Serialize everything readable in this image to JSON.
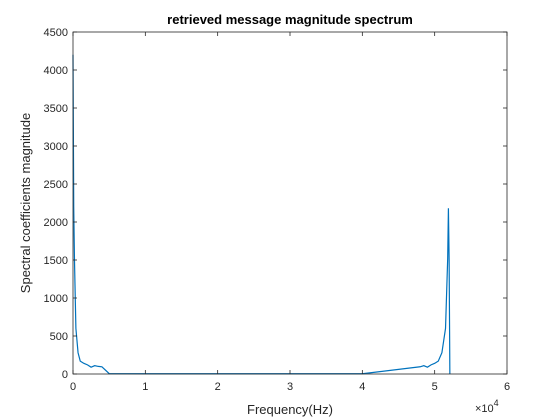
{
  "chart_data": {
    "type": "line",
    "title": "retrieved message magnitude spectrum",
    "xlabel": "Frequency(Hz)",
    "ylabel": "Spectral coefficients magnitude",
    "x_exponent_label": "×10",
    "x_exponent": "4",
    "xlim": [
      0,
      60000
    ],
    "ylim": [
      0,
      4500
    ],
    "x_ticks": [
      0,
      1,
      2,
      3,
      4,
      5,
      6
    ],
    "y_ticks": [
      0,
      500,
      1000,
      1500,
      2000,
      2500,
      3000,
      3500,
      4000,
      4500
    ],
    "grid": false,
    "line_color": "#0072BD",
    "series": [
      {
        "x": [
          0,
          100,
          200,
          400,
          700,
          1000,
          1500,
          2000,
          2500,
          3000,
          3500,
          4000,
          5000,
          10000,
          20000,
          30000,
          40000,
          48000,
          48500,
          49000,
          49500,
          50000,
          50500,
          51000,
          51500,
          51800,
          51900,
          52000,
          52100
        ],
        "values": [
          4200,
          2200,
          1520,
          600,
          280,
          170,
          140,
          120,
          90,
          110,
          100,
          95,
          5,
          3,
          3,
          3,
          3,
          95,
          110,
          90,
          120,
          140,
          170,
          280,
          600,
          1520,
          2180,
          1500,
          0
        ]
      }
    ]
  }
}
